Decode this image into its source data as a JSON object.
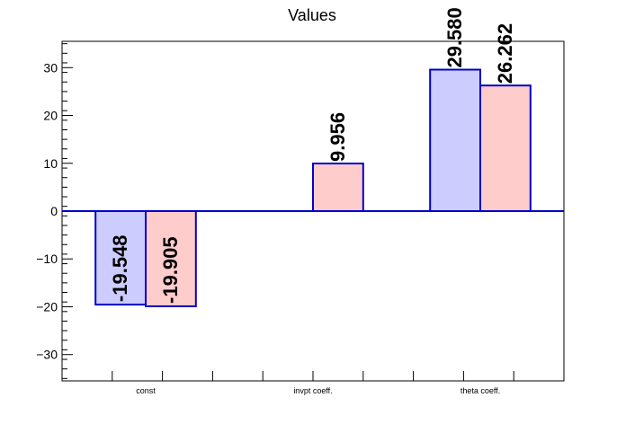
{
  "chart_data": {
    "type": "bar",
    "title": "Values",
    "categories": [
      "const",
      "invpt coeff.",
      "theta coeff."
    ],
    "series": [
      {
        "color": "#ccccff",
        "values": [
          -19.548,
          0,
          29.58
        ]
      },
      {
        "color": "#ffcccc",
        "values": [
          -19.905,
          9.956,
          26.262
        ]
      }
    ],
    "value_labels": [
      [
        "-19.548",
        "",
        "29.580"
      ],
      [
        "-19.905",
        "9.956",
        "26.262"
      ]
    ],
    "ylim": [
      -35.5,
      35.5
    ],
    "yticks": [
      -30,
      -20,
      -10,
      0,
      10,
      20,
      30
    ],
    "ytick_labels": [
      "−30",
      "−20",
      "−10",
      "0",
      "10",
      "20",
      "30"
    ],
    "grid": false,
    "bar_edge_color": "#0000cc",
    "zero_line_color": "#0000cc"
  }
}
